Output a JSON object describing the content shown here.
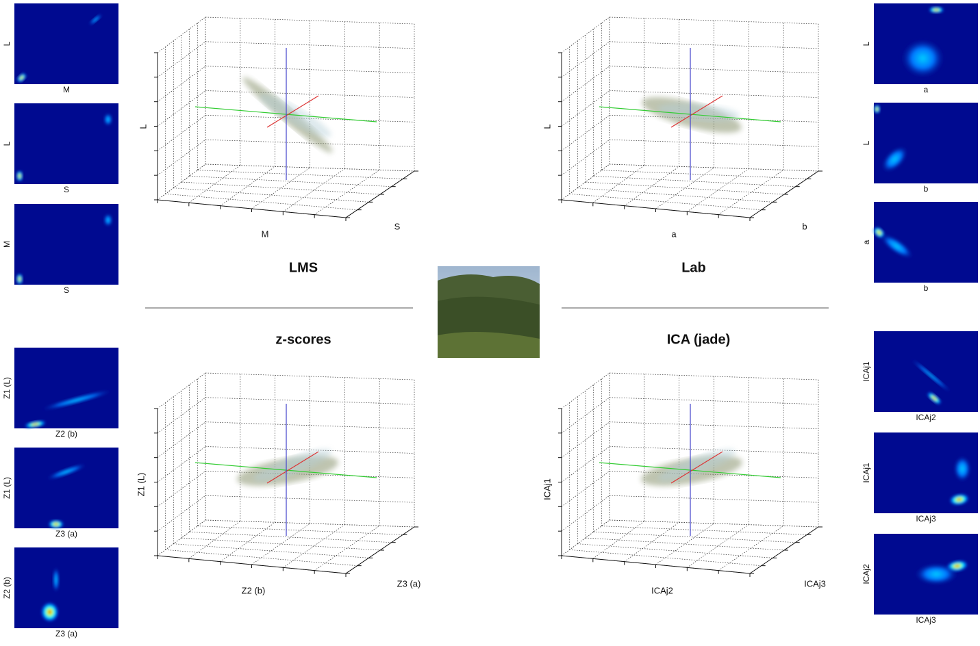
{
  "plots": [
    {
      "title": "LMS",
      "x_label": "M",
      "y_label": "S",
      "z_label": "L"
    },
    {
      "title": "Lab",
      "x_label": "a",
      "y_label": "b",
      "z_label": "L"
    },
    {
      "title": "z-scores",
      "x_label": "Z2 (b)",
      "y_label": "Z3 (a)",
      "z_label": "Z1 (L)"
    },
    {
      "title": "ICA (jade)",
      "x_label": "ICAj2",
      "y_label": "ICAj3",
      "z_label": "ICAj1"
    }
  ],
  "heatmaps": [
    {
      "y_label": "L",
      "x_label": "M"
    },
    {
      "y_label": "L",
      "x_label": "S"
    },
    {
      "y_label": "M",
      "x_label": "S"
    },
    {
      "y_label": "Z1 (L)",
      "x_label": "Z2 (b)"
    },
    {
      "y_label": "Z1 (L)",
      "x_label": "Z3 (a)"
    },
    {
      "y_label": "Z2 (b)",
      "x_label": "Z3 (a)"
    },
    {
      "y_label": "L",
      "x_label": "a"
    },
    {
      "y_label": "L",
      "x_label": "b"
    },
    {
      "y_label": "a",
      "x_label": "b"
    },
    {
      "y_label": "ICAj1",
      "x_label": "ICAj2"
    },
    {
      "y_label": "ICAj1",
      "x_label": "ICAj3"
    },
    {
      "y_label": "ICAj2",
      "x_label": "ICAj3"
    }
  ]
}
